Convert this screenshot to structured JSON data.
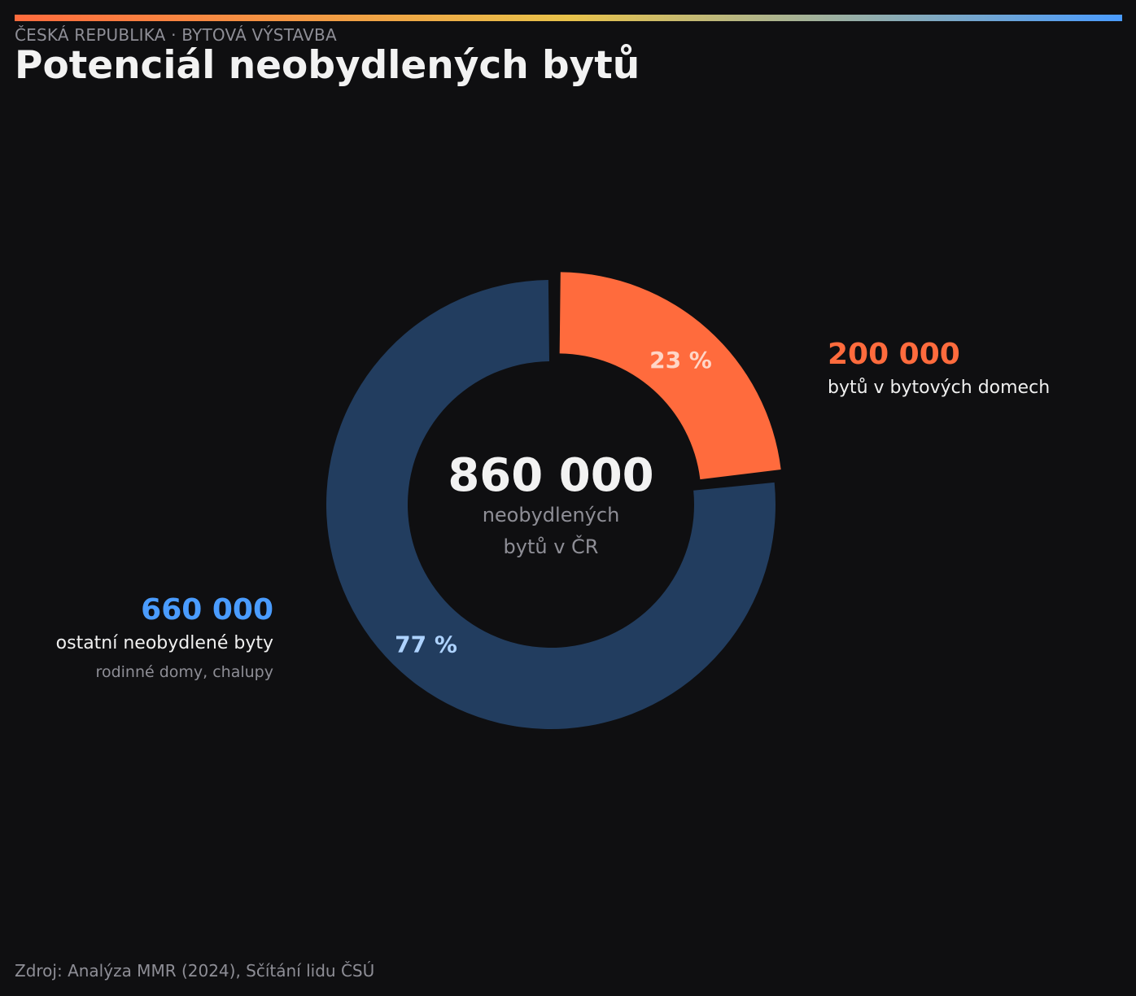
{
  "header": {
    "kicker": "ČESKÁ REPUBLIKA · BYTOVÁ VÝSTAVBA",
    "title": "Potenciál neobydlených bytů"
  },
  "center": {
    "value": "860 000",
    "line1": "neobydlených",
    "line2": "bytů v ČR"
  },
  "chart_data": {
    "type": "pie",
    "variant": "donut",
    "total": 860000,
    "slices": [
      {
        "value": 200000,
        "percent_label": "23 %",
        "value_label": "200 000",
        "description": "bytů v bytových domech",
        "color": "#ff6b3d",
        "percent_color": "#ffd6c7",
        "exploded": true
      },
      {
        "value": 660000,
        "percent_label": "77 %",
        "value_label": "660 000",
        "description": "ostatní neobydlené byty",
        "subdescription": "rodinné domy, chalupy",
        "color": "#223d5f",
        "label_color": "#4a9cff",
        "percent_color": "#aed3ff",
        "exploded": false
      }
    ]
  },
  "colors": {
    "background": "#0f0f11",
    "accent_orange": "#ff6b3d",
    "accent_blue": "#4a9cff",
    "muted_text": "#8e8e96"
  },
  "footer": {
    "source": "Zdroj: Analýza MMR (2024), Sčítání lidu ČSÚ"
  }
}
